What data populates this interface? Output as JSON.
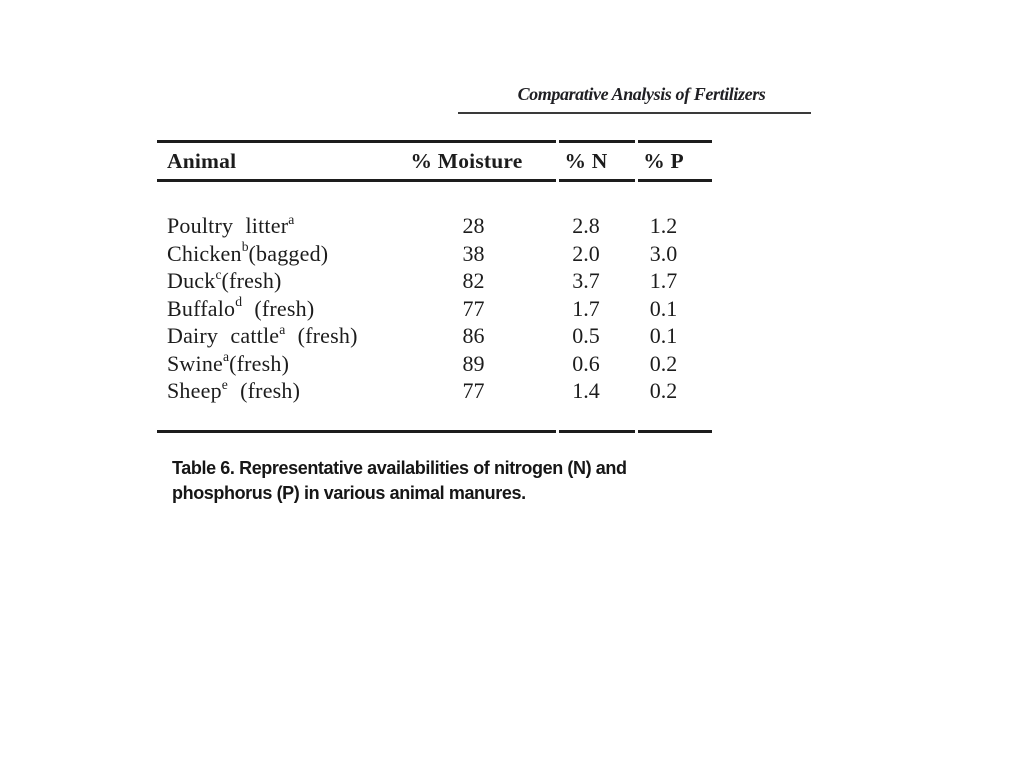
{
  "running_head": "Comparative Analysis of Fertilizers",
  "table": {
    "headers": {
      "animal": "Animal",
      "moisture": "% Moisture",
      "n": "% N",
      "p": "% P"
    },
    "rows": [
      {
        "animal": "Poultry litter",
        "sup": "a",
        "suffix": "",
        "moisture": "28",
        "n": "2.8",
        "p": "1.2"
      },
      {
        "animal": "Chicken",
        "sup": "b",
        "suffix": "(bagged)",
        "moisture": "38",
        "n": "2.0",
        "p": "3.0"
      },
      {
        "animal": "Duck",
        "sup": "c",
        "suffix": "(fresh)",
        "moisture": "82",
        "n": "3.7",
        "p": "1.7"
      },
      {
        "animal": "Buffalo",
        "sup": "d",
        "suffix": " (fresh)",
        "moisture": "77",
        "n": "1.7",
        "p": "0.1"
      },
      {
        "animal": "Dairy cattle",
        "sup": "a",
        "suffix": " (fresh)",
        "moisture": "86",
        "n": "0.5",
        "p": "0.1"
      },
      {
        "animal": "Swine",
        "sup": "a",
        "suffix": "(fresh)",
        "moisture": "89",
        "n": "0.6",
        "p": "0.2"
      },
      {
        "animal": "Sheep",
        "sup": "e",
        "suffix": " (fresh)",
        "moisture": "77",
        "n": "1.4",
        "p": "0.2"
      }
    ],
    "caption_lines": [
      "Table 6. Representative availabilities of nitrogen (N) and",
      "phosphorus (P) in various animal manures."
    ],
    "caption": "Table 6. Representative availabilities of nitrogen (N) and phosphorus (P) in various animal manures."
  },
  "colors": {
    "ink": "#1c1c1c",
    "rule": "#1d1d1d",
    "background": "#ffffff"
  }
}
